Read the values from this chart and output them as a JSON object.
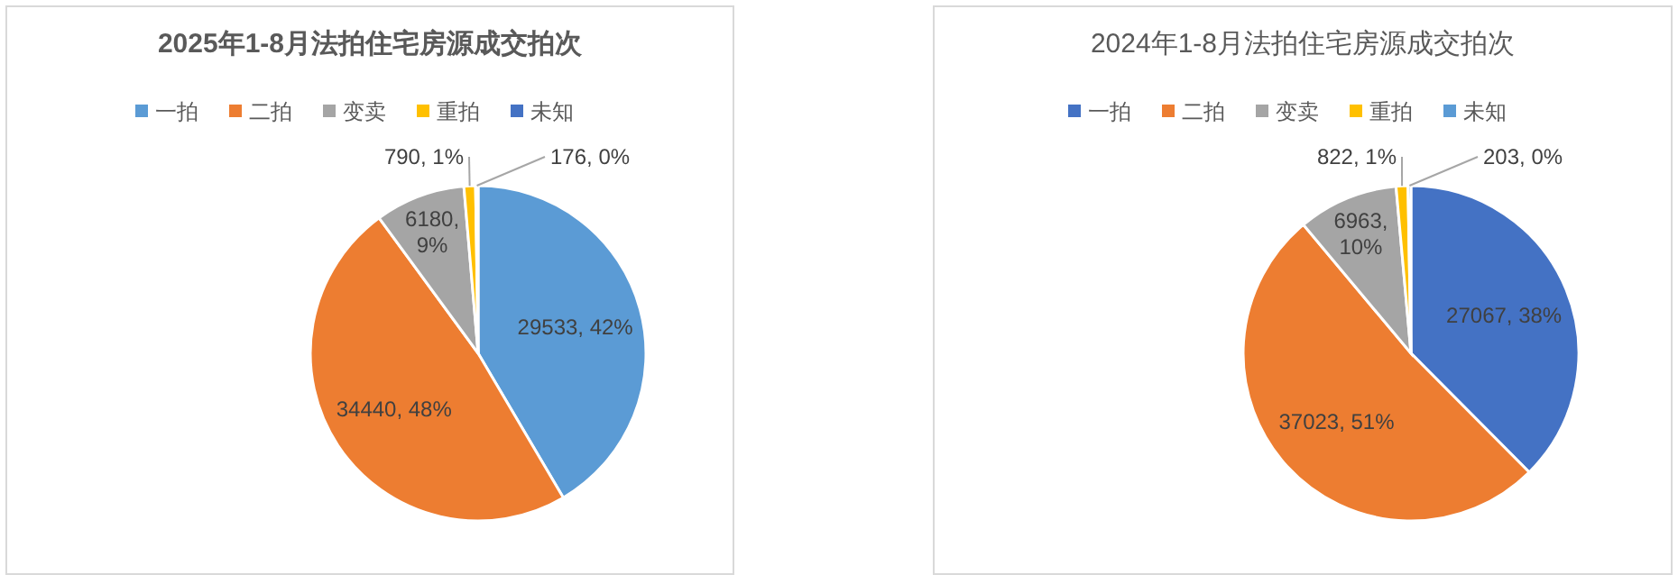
{
  "chart_data": [
    {
      "type": "pie",
      "title": "2025年1-8月法拍住宅房源成交拍次",
      "legend": "top",
      "categories": [
        "一拍",
        "二拍",
        "变卖",
        "重拍",
        "未知"
      ],
      "values": [
        29533,
        34440,
        6180,
        790,
        176
      ],
      "colors": [
        "#5b9bd5",
        "#ed7d31",
        "#a5a5a5",
        "#ffc000",
        "#4472c4"
      ],
      "value_labels": [
        "29533, 42%",
        "34440, 48%",
        "6180, 9%",
        "790, 1%",
        "176, 0%"
      ]
    },
    {
      "type": "pie",
      "title": "2024年1-8月法拍住宅房源成交拍次",
      "legend": "top",
      "categories": [
        "一拍",
        "二拍",
        "变卖",
        "重拍",
        "未知"
      ],
      "values": [
        27067,
        37023,
        6963,
        822,
        203
      ],
      "colors": [
        "#4472c4",
        "#ed7d31",
        "#a5a5a5",
        "#ffc000",
        "#5b9bd5"
      ],
      "value_labels": [
        "27067, 38%",
        "37023, 51%",
        "6963, 10%",
        "822, 1%",
        "203, 0%"
      ]
    }
  ]
}
